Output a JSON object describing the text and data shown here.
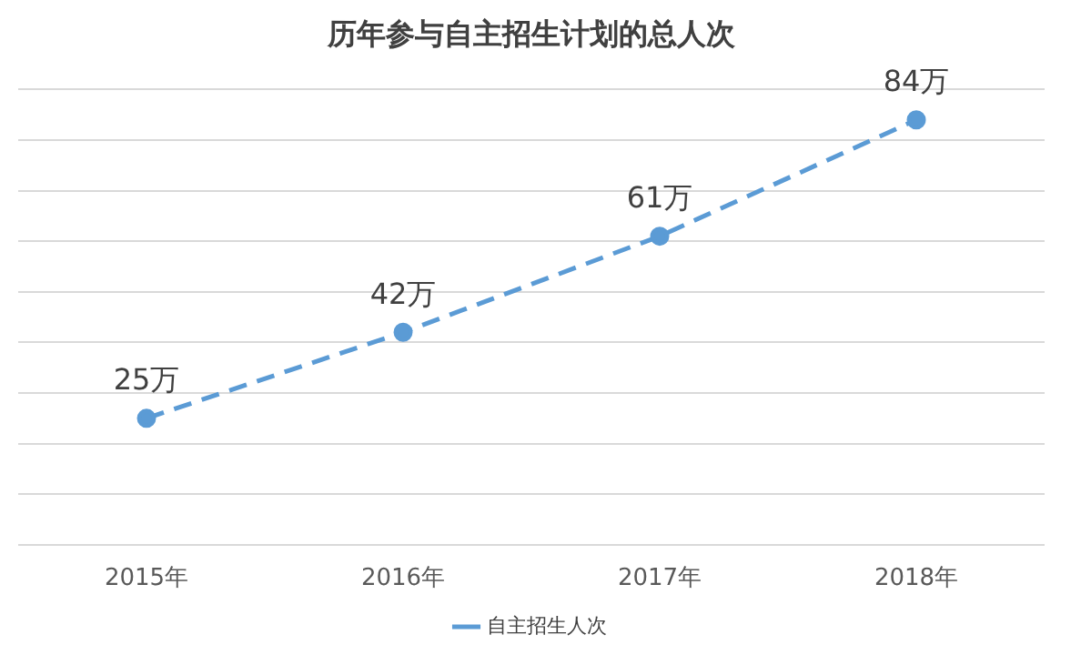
{
  "chart_data": {
    "type": "line",
    "title": "历年参与自主招生计划的总人次",
    "categories": [
      "2015年",
      "2016年",
      "2017年",
      "2018年"
    ],
    "series": [
      {
        "name": "自主招生人次",
        "color": "#5b9bd5",
        "values": [
          25,
          42,
          61,
          84
        ],
        "value_labels": [
          "25万",
          "42万",
          "61万",
          "84万"
        ]
      }
    ],
    "ylim": [
      0,
      90
    ],
    "yticks": [
      {
        "value": 0,
        "label": null
      },
      {
        "value": 10,
        "label": null
      },
      {
        "value": 20,
        "label": null
      },
      {
        "value": 30,
        "label": null
      },
      {
        "value": 40,
        "label": null
      },
      {
        "value": 50,
        "label": null
      },
      {
        "value": 60,
        "label": null
      },
      {
        "value": 70,
        "label": null
      },
      {
        "value": 80,
        "label": null
      },
      {
        "value": 90,
        "label": null
      }
    ],
    "tick_labels": "x",
    "grid": "y",
    "legend": "bottom",
    "marker": "circle",
    "line_style": "dashed"
  }
}
